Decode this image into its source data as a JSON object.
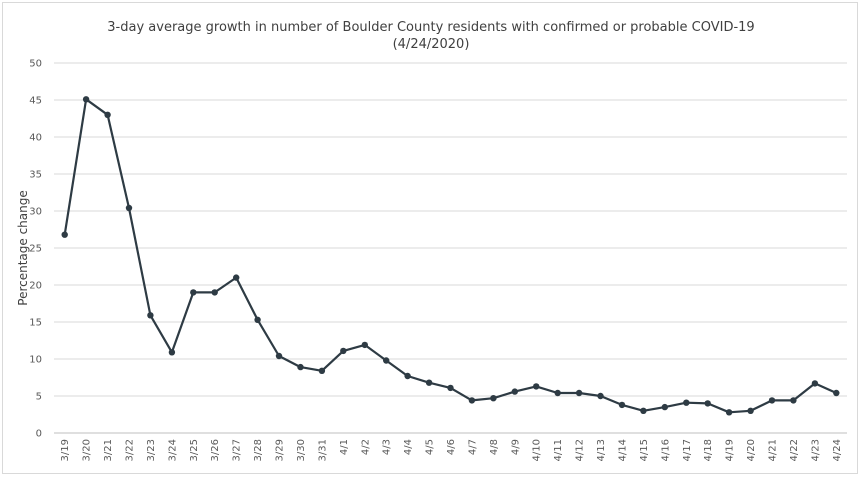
{
  "chart_data": {
    "type": "line",
    "title": "3-day average growth in number of Boulder County residents with confirmed or probable COVID-19",
    "subtitle": "(4/24/2020)",
    "xlabel": "",
    "ylabel": "Percentage change",
    "ylim": [
      0,
      50
    ],
    "yticks": [
      0,
      5,
      10,
      15,
      20,
      25,
      30,
      35,
      40,
      45,
      50
    ],
    "grid": true,
    "categories": [
      "3/19",
      "3/20",
      "3/21",
      "3/22",
      "3/23",
      "3/24",
      "3/25",
      "3/26",
      "3/27",
      "3/28",
      "3/29",
      "3/30",
      "3/31",
      "4/1",
      "4/2",
      "4/3",
      "4/4",
      "4/5",
      "4/6",
      "4/7",
      "4/8",
      "4/9",
      "4/10",
      "4/11",
      "4/12",
      "4/13",
      "4/14",
      "4/15",
      "4/16",
      "4/17",
      "4/18",
      "4/19",
      "4/20",
      "4/21",
      "4/22",
      "4/23",
      "4/24"
    ],
    "series": [
      {
        "values": [
          26.8,
          45.1,
          43.0,
          30.4,
          15.9,
          10.9,
          19.0,
          19.0,
          21.0,
          15.3,
          10.4,
          8.9,
          8.4,
          11.1,
          11.9,
          9.8,
          7.7,
          6.8,
          6.1,
          4.4,
          4.7,
          5.6,
          6.3,
          5.4,
          5.4,
          5.0,
          3.8,
          3.0,
          3.5,
          4.1,
          4.0,
          2.8,
          3.0,
          4.4,
          4.4,
          6.7,
          5.4
        ]
      }
    ],
    "colors": {
      "line": "#2e3b44",
      "grid": "#d9d9d9",
      "axis": "#bfbfbf"
    }
  }
}
